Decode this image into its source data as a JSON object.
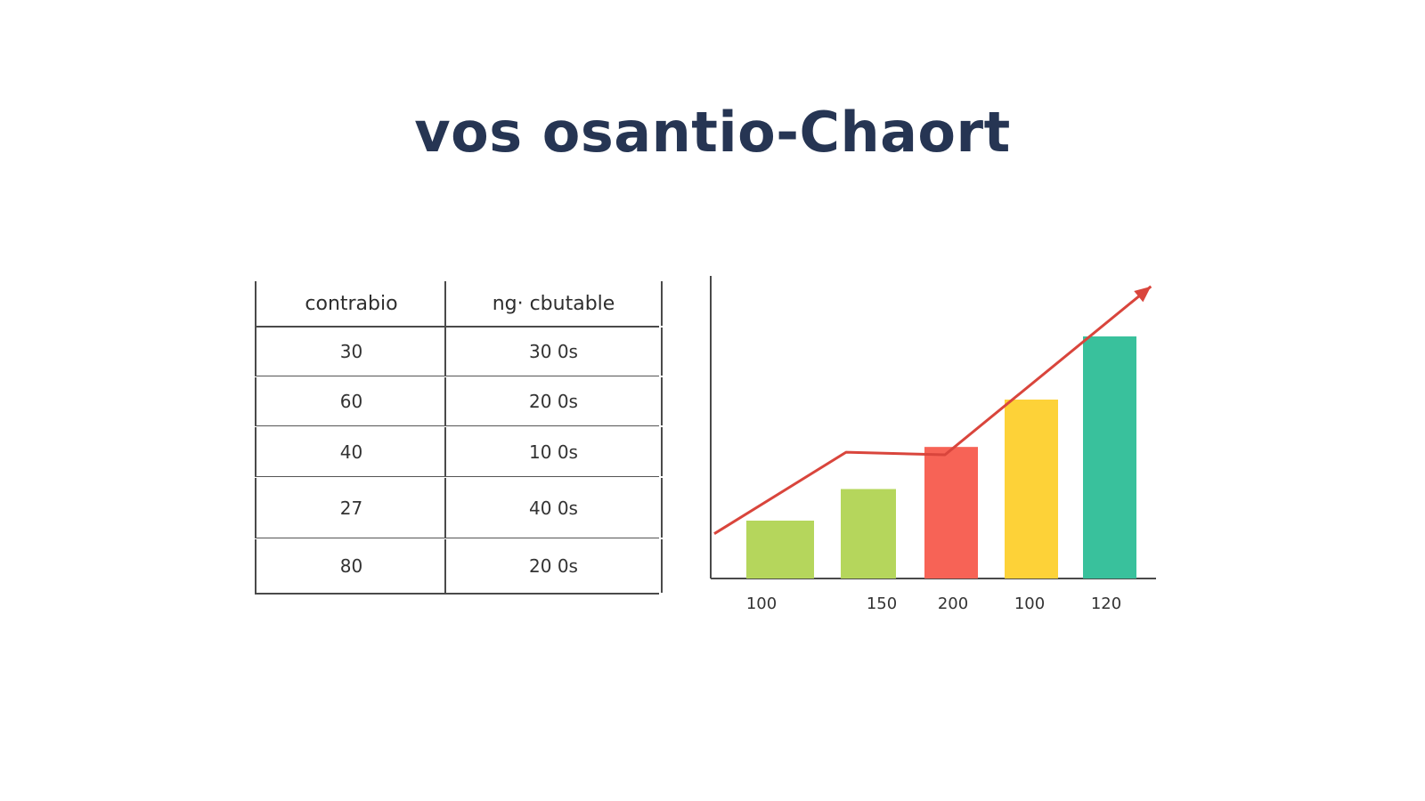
{
  "title": "vos osantio-Chaort",
  "table": {
    "headers": [
      "contrabio",
      "ng· cbutable"
    ],
    "rows": [
      [
        "30",
        "30 0s"
      ],
      [
        "60",
        "20 0s"
      ],
      [
        "40",
        "10 0s"
      ],
      [
        "27",
        "40 0s"
      ],
      [
        "80",
        "20 0s"
      ]
    ]
  },
  "chart_data": {
    "type": "bar",
    "categories": [
      "100",
      "150",
      "200",
      "100",
      "120"
    ],
    "values": [
      22,
      34,
      50,
      68,
      92
    ],
    "ylim": [
      0,
      115
    ],
    "colors": [
      "#b5d65c",
      "#b5d65c",
      "#f76356",
      "#fdd238",
      "#39c19c"
    ],
    "trend_line": {
      "color": "#d9453c",
      "points": [
        {
          "x": 0.5,
          "y": 17
        },
        {
          "x": 1.8,
          "y": 48
        },
        {
          "x": 3.0,
          "y": 47
        },
        {
          "x": 5.5,
          "y": 111
        }
      ]
    },
    "grid": false,
    "legend": "none"
  }
}
